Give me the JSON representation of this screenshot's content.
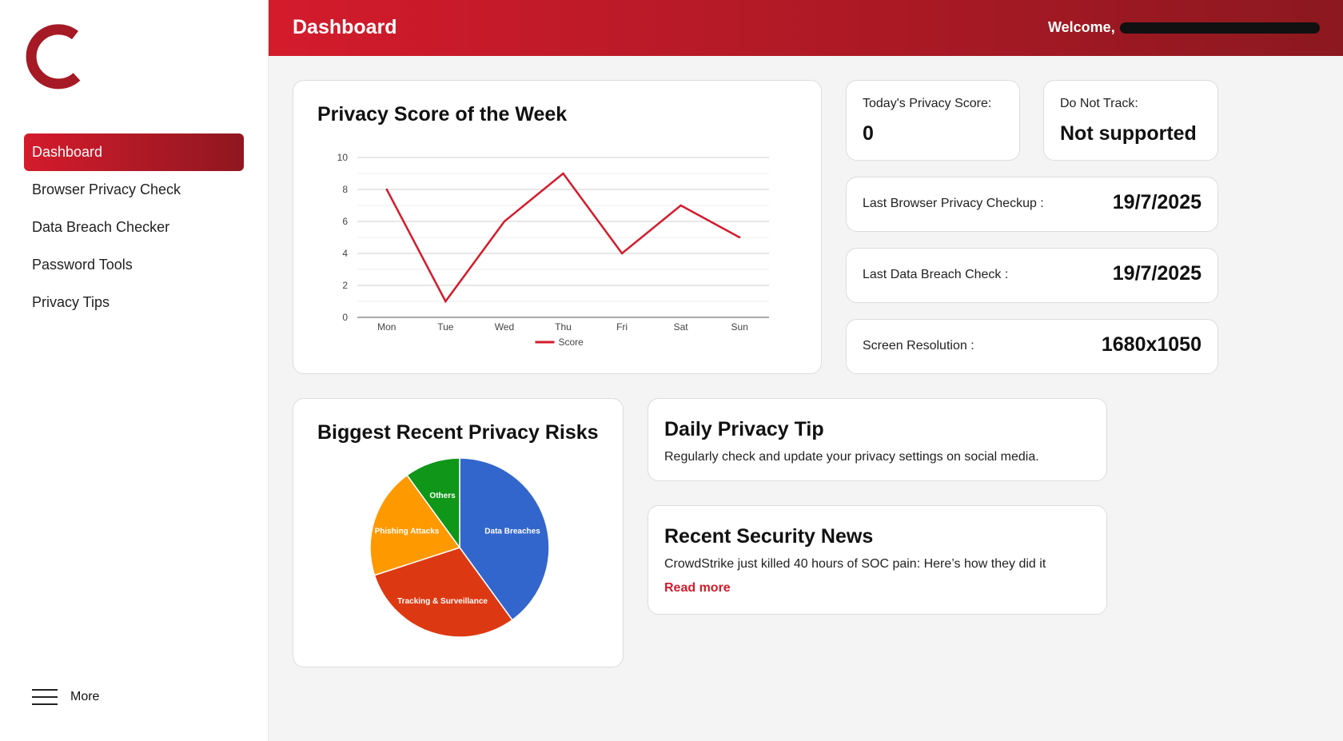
{
  "colors": {
    "brand_red": "#d41b2c",
    "brand_dark": "#8f1720",
    "background": "#f4f4f4",
    "line": "#d41b2c"
  },
  "sidebar": {
    "logo_icon": "c-logo-icon",
    "items": [
      {
        "label": "Dashboard",
        "active": true
      },
      {
        "label": "Browser Privacy Check"
      },
      {
        "label": "Data Breach Checker"
      },
      {
        "label": "Password Tools"
      },
      {
        "label": "Privacy Tips"
      }
    ],
    "more_label": "More",
    "more_icon": "hamburger-menu-icon"
  },
  "header": {
    "title": "Dashboard",
    "welcome": "Welcome,"
  },
  "cards": {
    "weekly_title": "Privacy Score of the Week",
    "today_score_label": "Today's Privacy Score:",
    "today_score_value": "0",
    "dnt_label": "Do Not Track:",
    "dnt_value": "Not supported",
    "browser_check_label": "Last Browser Privacy Checkup :",
    "browser_check_value": "19/7/2025",
    "breach_check_label": "Last Data Breach Check :",
    "breach_check_value": "19/7/2025",
    "resolution_label": "Screen Resolution :",
    "resolution_value": "1680x1050",
    "risks_title": "Biggest Recent Privacy Risks",
    "tip_title": "Daily Privacy Tip",
    "tip_text": "Regularly check and update your privacy settings on social media.",
    "news_title": "Recent Security News",
    "news_text": "CrowdStrike just killed 40 hours of SOC pain: Here’s how they did it",
    "news_link": "Read more"
  },
  "chart_data": [
    {
      "type": "line",
      "title": "Privacy Score of the Week",
      "categories": [
        "Mon",
        "Tue",
        "Wed",
        "Thu",
        "Fri",
        "Sat",
        "Sun"
      ],
      "series": [
        {
          "name": "Score",
          "values": [
            8,
            1,
            6,
            9,
            4,
            7,
            5
          ],
          "color": "#d41b2c"
        }
      ],
      "ylim": [
        0,
        10
      ],
      "yticks": [
        "0",
        "2",
        "4",
        "6",
        "8",
        "10"
      ],
      "grid": true,
      "legend": "bottom"
    },
    {
      "type": "pie",
      "title": "Biggest Recent Privacy Risks",
      "slices": [
        {
          "label": "Data Breaches",
          "value": 40,
          "color": "#3366cc"
        },
        {
          "label": "Tracking & Surveillance",
          "value": 30,
          "color": "#dc3912"
        },
        {
          "label": "Phishing Attacks",
          "value": 20,
          "color": "#ff9900"
        },
        {
          "label": "Others",
          "value": 10,
          "color": "#109618"
        }
      ]
    }
  ]
}
